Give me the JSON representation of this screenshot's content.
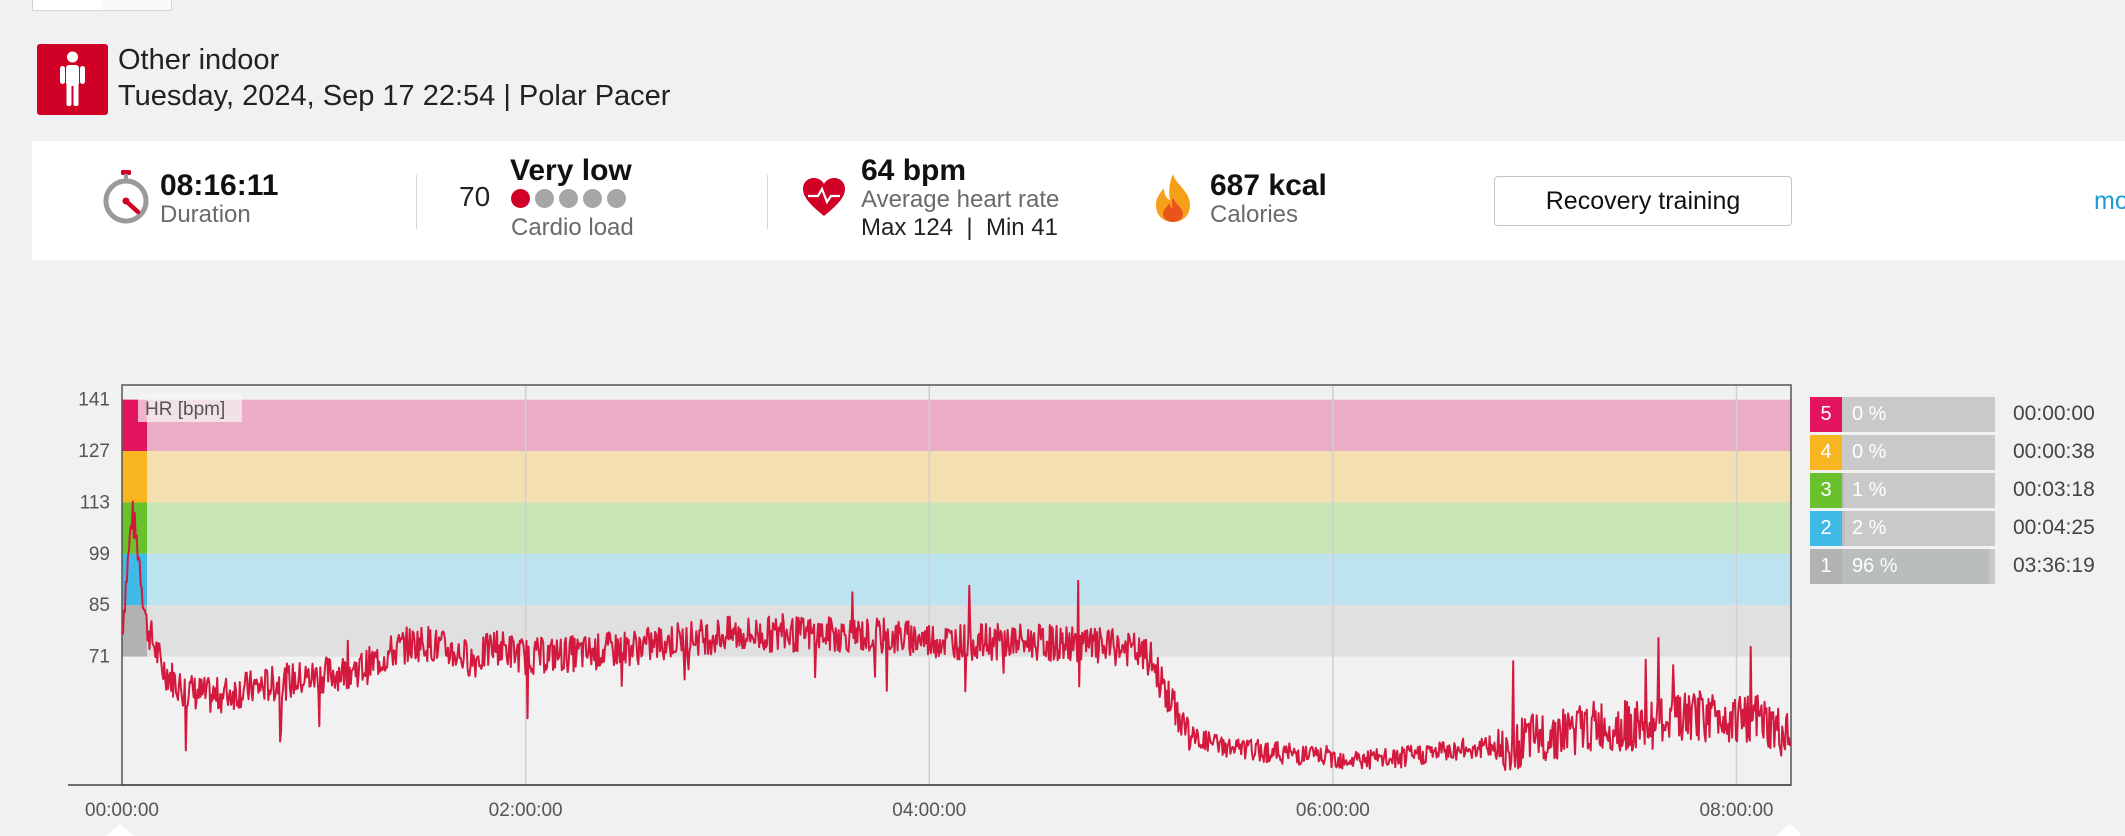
{
  "header": {
    "sport": "Other indoor",
    "subtitle": "Tuesday, 2024, Sep 17 22:54 | Polar Pacer"
  },
  "summary": {
    "duration": {
      "value": "08:16:11",
      "label": "Duration",
      "icon": "stopwatch-icon"
    },
    "cardio": {
      "value": "70",
      "level": "Very low",
      "label": "Cardio load",
      "dots_active": 1,
      "dots_total": 5
    },
    "heart": {
      "value": "64 bpm",
      "label": "Average heart rate",
      "max_min": "Max 124  |  Min 41",
      "icon": "heart-icon"
    },
    "calories": {
      "value": "687 kcal",
      "label": "Calories",
      "icon": "flame-icon"
    },
    "benefit_button": "Recovery training",
    "more_link": "mo"
  },
  "colors": {
    "brand_red": "#d10027",
    "hr_line": "#d4193f",
    "zone5": "#e2145e",
    "zone4": "#f6b521",
    "zone3": "#69c12d",
    "zone2": "#3fb9e6",
    "zone1": "#b2b2b2",
    "link": "#1a9bd7"
  },
  "chart_data": {
    "type": "line",
    "title": "HR [bpm]",
    "ylabel": "HR [bpm]",
    "y_ticks": [
      141,
      127,
      113,
      99,
      85,
      71
    ],
    "ylim": [
      36,
      145
    ],
    "x_ticks": [
      "00:00:00",
      "02:00:00",
      "04:00:00",
      "06:00:00",
      "08:00:00"
    ],
    "xlim_hours": [
      0,
      8.27
    ],
    "zone_bands": [
      {
        "zone": 5,
        "from": 127,
        "to": 141
      },
      {
        "zone": 4,
        "from": 113,
        "to": 127
      },
      {
        "zone": 3,
        "from": 99,
        "to": 113
      },
      {
        "zone": 2,
        "from": 85,
        "to": 99
      },
      {
        "zone": 1,
        "from": 71,
        "to": 85
      }
    ],
    "series": [
      {
        "x_hours": [
          0,
          0.05,
          0.08,
          0.12,
          0.2,
          0.3,
          0.45,
          0.6,
          0.8,
          1.0,
          1.2,
          1.4,
          1.5,
          1.6,
          1.75,
          1.85,
          2.0,
          2.3,
          2.6,
          2.8,
          3.0,
          3.3,
          3.6,
          3.9,
          4.2,
          4.5,
          4.8,
          5.0,
          5.1,
          5.2,
          5.3,
          5.5,
          5.7,
          5.9,
          6.1,
          6.3,
          6.5,
          6.7,
          6.9,
          7.1,
          7.3,
          7.5,
          7.7,
          7.9,
          8.1,
          8.27
        ],
        "values": [
          78,
          110,
          100,
          80,
          68,
          62,
          60,
          62,
          64,
          66,
          68,
          74,
          75,
          73,
          70,
          74,
          71,
          72,
          74,
          76,
          77,
          77,
          77,
          76,
          75,
          75,
          74,
          73,
          70,
          58,
          49,
          46,
          45,
          44,
          43,
          43,
          45,
          46,
          47,
          50,
          52,
          52,
          54,
          55,
          54,
          48
        ]
      }
    ]
  },
  "zones": [
    {
      "num": "5",
      "pct": "0 %",
      "time": "00:00:00",
      "fill": 0.0
    },
    {
      "num": "4",
      "pct": "0 %",
      "time": "00:00:38",
      "fill": 0.0
    },
    {
      "num": "3",
      "pct": "1 %",
      "time": "00:03:18",
      "fill": 0.01
    },
    {
      "num": "2",
      "pct": "2 %",
      "time": "00:04:25",
      "fill": 0.02
    },
    {
      "num": "1",
      "pct": "96 %",
      "time": "03:36:19",
      "fill": 0.96
    }
  ]
}
